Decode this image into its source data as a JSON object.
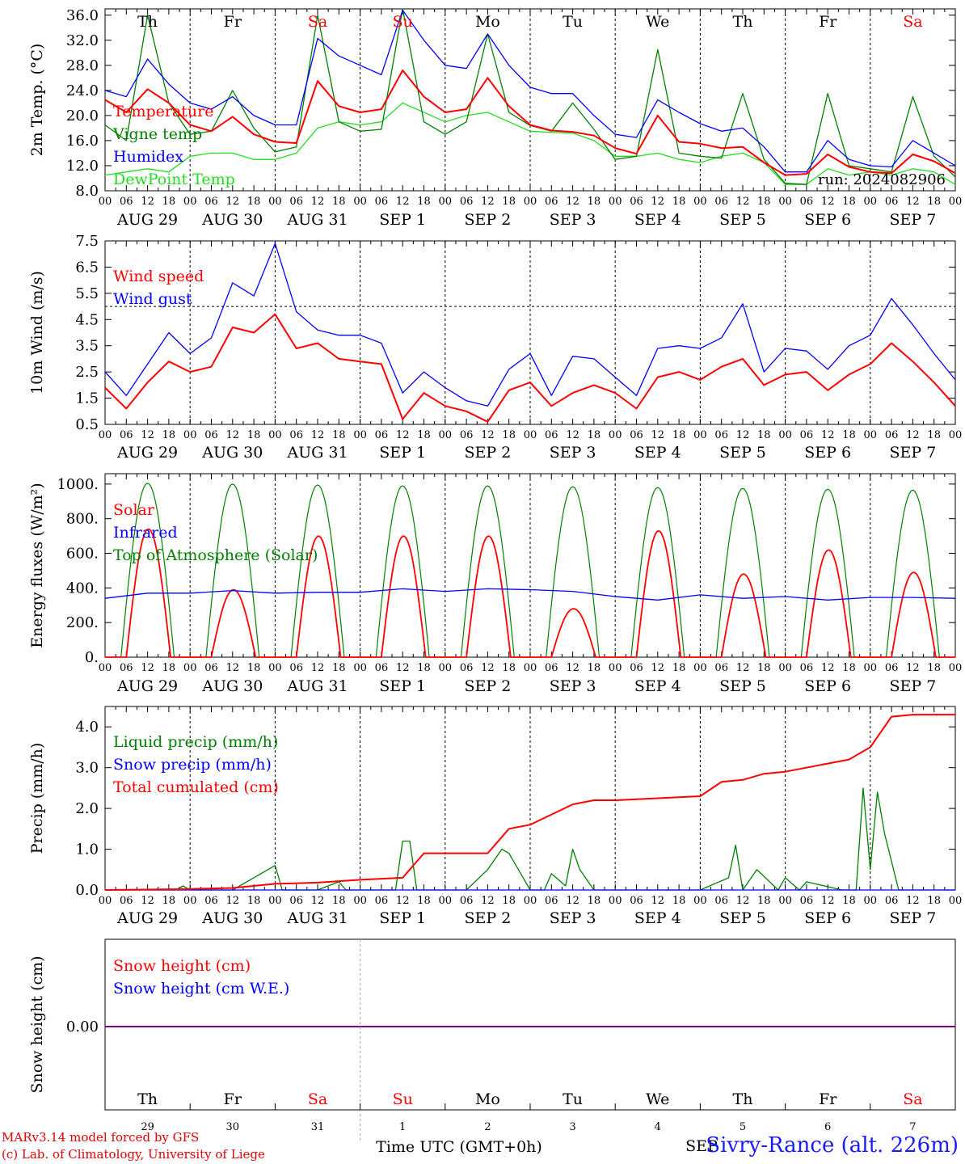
{
  "footer": {
    "credit_line1": "MARv3.14 model forced by GFS",
    "credit_line2": "(c) Lab. of Climatology, University of Liege",
    "station": "Sivry-Rance (alt. 226m)",
    "overlap_label": "SEP"
  },
  "colors": {
    "red": "#ff0000",
    "green": "#008000",
    "blue": "#0000ff",
    "lime": "#22dd22",
    "purple": "#800080"
  },
  "days": [
    "Th",
    "Fr",
    "Sa",
    "Su",
    "Mo",
    "Tu",
    "We",
    "Th",
    "Fr",
    "Sa"
  ],
  "day_colors": [
    "#000000",
    "#000000",
    "#ff0000",
    "#ff0000",
    "#000000",
    "#000000",
    "#000000",
    "#000000",
    "#000000",
    "#ff0000"
  ],
  "dates": [
    "AUG 29",
    "AUG 30",
    "AUG 31",
    "SEP  1",
    "SEP  2",
    "SEP  3",
    "SEP  4",
    "SEP  5",
    "SEP  6",
    "SEP  7"
  ],
  "day_numbers": [
    "29",
    "30",
    "31",
    "1",
    "2",
    "3",
    "4",
    "5",
    "6",
    "7"
  ],
  "hour_labels": [
    "00",
    "06",
    "12",
    "18"
  ],
  "hour_label_end": "00",
  "chart_data": [
    {
      "type": "line",
      "ylabel": "2m Temp. (°C)",
      "ylim": [
        8,
        37
      ],
      "yticks": [
        "36.0",
        "32.0",
        "28.0",
        "24.0",
        "20.0",
        "16.0",
        "12.0",
        "8.0"
      ],
      "ytick_values": [
        36,
        32,
        28,
        24,
        20,
        16,
        12,
        8
      ],
      "annotation": "run: 2024082906",
      "x_hours": [
        0,
        6,
        12,
        18,
        24,
        30,
        36,
        42,
        48,
        54,
        60,
        66,
        72,
        78,
        84,
        90,
        96,
        102,
        108,
        114,
        120,
        126,
        132,
        138,
        144,
        150,
        156,
        162,
        168,
        174,
        180,
        186,
        192,
        198,
        204,
        210,
        216,
        222,
        228,
        234,
        240
      ],
      "series": [
        {
          "name": "Temperature",
          "color": "#ff0000",
          "values": [
            22.5,
            20.5,
            24.2,
            22,
            18.5,
            17.5,
            19.8,
            17,
            15.8,
            15.6,
            25.5,
            21.5,
            20.5,
            21,
            27.2,
            23,
            20.5,
            21,
            26,
            21.5,
            18.5,
            17.6,
            17.4,
            16.8,
            14.8,
            13.9,
            20,
            15.8,
            15.5,
            14.8,
            15,
            12.5,
            10.5,
            10.7,
            13.8,
            11.8,
            11,
            10.8,
            13.8,
            12.7,
            10.8
          ]
        },
        {
          "name": "Vigne temp",
          "color": "#008000",
          "values": [
            18.5,
            16,
            36,
            22,
            17,
            17.5,
            24,
            18,
            14.2,
            15,
            36,
            19,
            17.5,
            17.8,
            37,
            19,
            17,
            19,
            33,
            20.5,
            18.4,
            17.5,
            22,
            17.8,
            13,
            13.5,
            30.5,
            14,
            13.5,
            13.2,
            23.5,
            13,
            9.2,
            9,
            23.5,
            12,
            11.5,
            11,
            23,
            13.5,
            10.2
          ]
        },
        {
          "name": "Humidex",
          "color": "#0000ff",
          "values": [
            24,
            23,
            29,
            25,
            22,
            21,
            23,
            20,
            18.5,
            18.5,
            32.3,
            29.5,
            28,
            26.5,
            36.8,
            32,
            28,
            27.5,
            33,
            28,
            24.5,
            23.5,
            23.5,
            20,
            17,
            16.5,
            22.5,
            20.5,
            18.7,
            17.5,
            18,
            15,
            11,
            11,
            16,
            13,
            12,
            11.8,
            16,
            14,
            12
          ]
        },
        {
          "name": "DewPoint Temp",
          "color": "#22dd22",
          "values": [
            10.5,
            11,
            11.5,
            11,
            13.5,
            14,
            14,
            13,
            13,
            14,
            18,
            19,
            18.5,
            19,
            22,
            20.5,
            19,
            20,
            20.5,
            19,
            17.5,
            17.3,
            17.2,
            16,
            13.5,
            13.5,
            14,
            13,
            12.5,
            13.5,
            14,
            12.5,
            9,
            9,
            11.5,
            10.5,
            11,
            10.5,
            11.5,
            11,
            9
          ]
        }
      ]
    },
    {
      "type": "line",
      "ylabel": "10m Wind (m/s)",
      "ylim": [
        0.5,
        7.5
      ],
      "yticks": [
        "7.5",
        "6.5",
        "5.5",
        "4.5",
        "3.5",
        "2.5",
        "1.5",
        "0.5"
      ],
      "ytick_values": [
        7.5,
        6.5,
        5.5,
        4.5,
        3.5,
        2.5,
        1.5,
        0.5
      ],
      "reference_line": 5,
      "x_hours": [
        0,
        6,
        12,
        18,
        24,
        30,
        36,
        42,
        48,
        54,
        60,
        66,
        72,
        78,
        84,
        90,
        96,
        102,
        108,
        114,
        120,
        126,
        132,
        138,
        144,
        150,
        156,
        162,
        168,
        174,
        180,
        186,
        192,
        198,
        204,
        210,
        216,
        222,
        228,
        234,
        240
      ],
      "series": [
        {
          "name": "Wind speed",
          "color": "#ff0000",
          "values": [
            1.9,
            1.1,
            2.1,
            2.9,
            2.5,
            2.7,
            4.2,
            4,
            4.7,
            3.4,
            3.6,
            3,
            2.9,
            2.8,
            0.7,
            1.7,
            1.2,
            1,
            0.6,
            1.8,
            2.1,
            1.2,
            1.7,
            2,
            1.7,
            1.1,
            2.3,
            2.5,
            2.2,
            2.7,
            3,
            2,
            2.4,
            2.5,
            1.8,
            2.4,
            2.8,
            3.6,
            2.9,
            2.1,
            1.2
          ]
        },
        {
          "name": "Wind gust",
          "color": "#0000ff",
          "values": [
            2.5,
            1.6,
            2.8,
            4,
            3.2,
            3.8,
            5.9,
            5.4,
            7.4,
            4.8,
            4.1,
            3.9,
            3.9,
            3.6,
            1.7,
            2.5,
            1.9,
            1.4,
            1.2,
            2.6,
            3.2,
            1.6,
            3.1,
            3,
            2.3,
            1.6,
            3.4,
            3.5,
            3.4,
            3.8,
            5.1,
            2.5,
            3.4,
            3.3,
            2.6,
            3.5,
            3.9,
            5.3,
            4.3,
            3.2,
            2.2
          ]
        }
      ]
    },
    {
      "type": "line",
      "ylabel": "Energy fluxes (W/m²)",
      "ylim": [
        0,
        1060
      ],
      "yticks": [
        "1000.",
        "800.",
        "600.",
        "400.",
        "200.",
        "0."
      ],
      "ytick_values": [
        1000,
        800,
        600,
        400,
        200,
        0
      ],
      "series": [
        {
          "name": "Solar",
          "color": "#ff0000",
          "daily_peaks": [
            740,
            390,
            700,
            700,
            700,
            280,
            730,
            480,
            620,
            490
          ]
        },
        {
          "name": "Infrared",
          "color": "#0000ff",
          "x_hours": [
            0,
            12,
            24,
            36,
            48,
            60,
            72,
            84,
            96,
            108,
            120,
            132,
            144,
            156,
            168,
            180,
            192,
            204,
            216,
            228,
            240
          ],
          "values": [
            340,
            370,
            370,
            385,
            370,
            375,
            375,
            395,
            380,
            395,
            390,
            380,
            350,
            330,
            360,
            340,
            350,
            330,
            345,
            345,
            340
          ]
        },
        {
          "name": "Top of Atmosphere (Solar)",
          "color": "#008000",
          "daily_peaks": [
            1005,
            1000,
            995,
            990,
            990,
            985,
            980,
            975,
            970,
            965
          ]
        }
      ]
    },
    {
      "type": "line",
      "ylabel": "Precip (mm/h)",
      "ylim": [
        0,
        4.5
      ],
      "yticks": [
        "4.0",
        "3.0",
        "2.0",
        "1.0",
        "0.0"
      ],
      "ytick_values": [
        4,
        3,
        2,
        1,
        0
      ],
      "series": [
        {
          "name": "Liquid precip (mm/h)",
          "color": "#008000",
          "x_hours": [
            0,
            20,
            22,
            24,
            36,
            40,
            48,
            50,
            52,
            56,
            60,
            66,
            68,
            72,
            78,
            82,
            84,
            86,
            88,
            94,
            96,
            102,
            108,
            112,
            114,
            120,
            124,
            126,
            130,
            132,
            134,
            138,
            144,
            168,
            176,
            178,
            180,
            184,
            190,
            192,
            196,
            198,
            208,
            212,
            214,
            216,
            218,
            220,
            224,
            230,
            240
          ],
          "values": [
            0,
            0,
            0.1,
            0,
            0,
            0.2,
            0.6,
            0,
            0,
            0,
            0,
            0.2,
            0,
            0,
            0,
            0,
            1.2,
            1.2,
            0,
            0,
            0,
            0,
            0.5,
            1,
            0.9,
            0,
            0,
            0.4,
            0.1,
            1,
            0.5,
            0,
            0,
            0,
            0.3,
            1.1,
            0,
            0.5,
            0,
            0.3,
            0,
            0.2,
            0,
            0,
            2.5,
            0.5,
            2.4,
            1.4,
            0,
            0,
            0
          ]
        },
        {
          "name": "Snow precip (mm/h)",
          "color": "#0000ff",
          "x_hours": [
            0,
            240
          ],
          "values": [
            0,
            0
          ]
        },
        {
          "name": "Total cumulated (cm)",
          "color": "#ff0000",
          "x_hours": [
            0,
            22,
            36,
            48,
            60,
            72,
            84,
            90,
            96,
            108,
            114,
            120,
            132,
            138,
            144,
            168,
            174,
            180,
            186,
            192,
            204,
            210,
            216,
            222,
            228,
            240
          ],
          "values": [
            0,
            0.02,
            0.05,
            0.15,
            0.18,
            0.25,
            0.3,
            0.9,
            0.9,
            0.9,
            1.5,
            1.6,
            2.1,
            2.2,
            2.2,
            2.3,
            2.65,
            2.7,
            2.85,
            2.9,
            3.1,
            3.2,
            3.5,
            4.25,
            4.3,
            4.3
          ]
        }
      ]
    },
    {
      "type": "line",
      "ylabel": "Snow height (cm)",
      "yticks": [
        "0.00"
      ],
      "ytick_values": [
        0
      ],
      "series": [
        {
          "name": "Snow height (cm)",
          "color": "#ff0000",
          "values": [
            0,
            0
          ]
        },
        {
          "name": "Snow height (cm W.E.)",
          "color": "#0000ff",
          "values": [
            0,
            0
          ]
        }
      ],
      "xlabel": "Time UTC (GMT+0h)"
    }
  ]
}
